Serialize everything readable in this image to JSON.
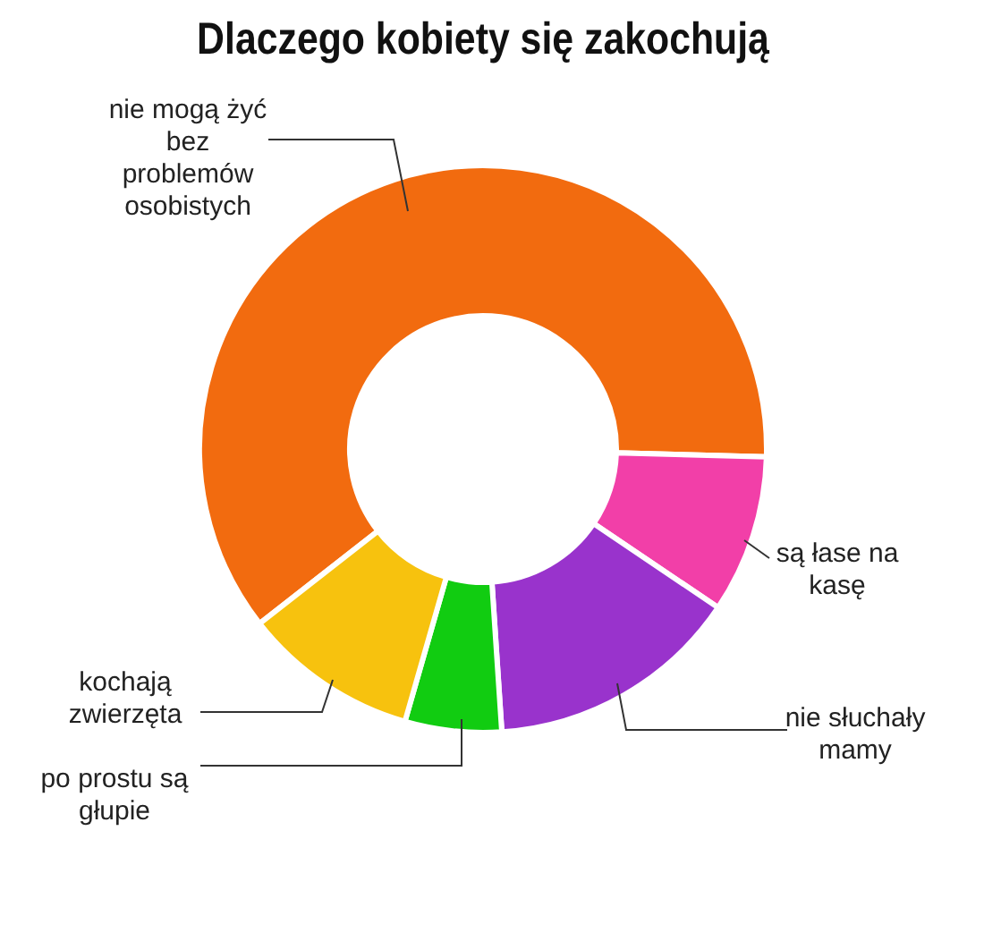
{
  "chart_data": {
    "type": "donut",
    "title": "Dlaczego kobiety się zakochują",
    "categories": [
      "nie mogą żyć bez problemów osobistych",
      "są łase na kasę",
      "nie słuchały mamy",
      "po prostu są głupie",
      "kochają zwierzęta"
    ],
    "values": [
      61,
      9,
      14.5,
      5.5,
      10
    ],
    "colors": [
      "#f26b0f",
      "#f23fa8",
      "#9933cc",
      "#11cc11",
      "#f7c20e"
    ],
    "legend": false
  }
}
